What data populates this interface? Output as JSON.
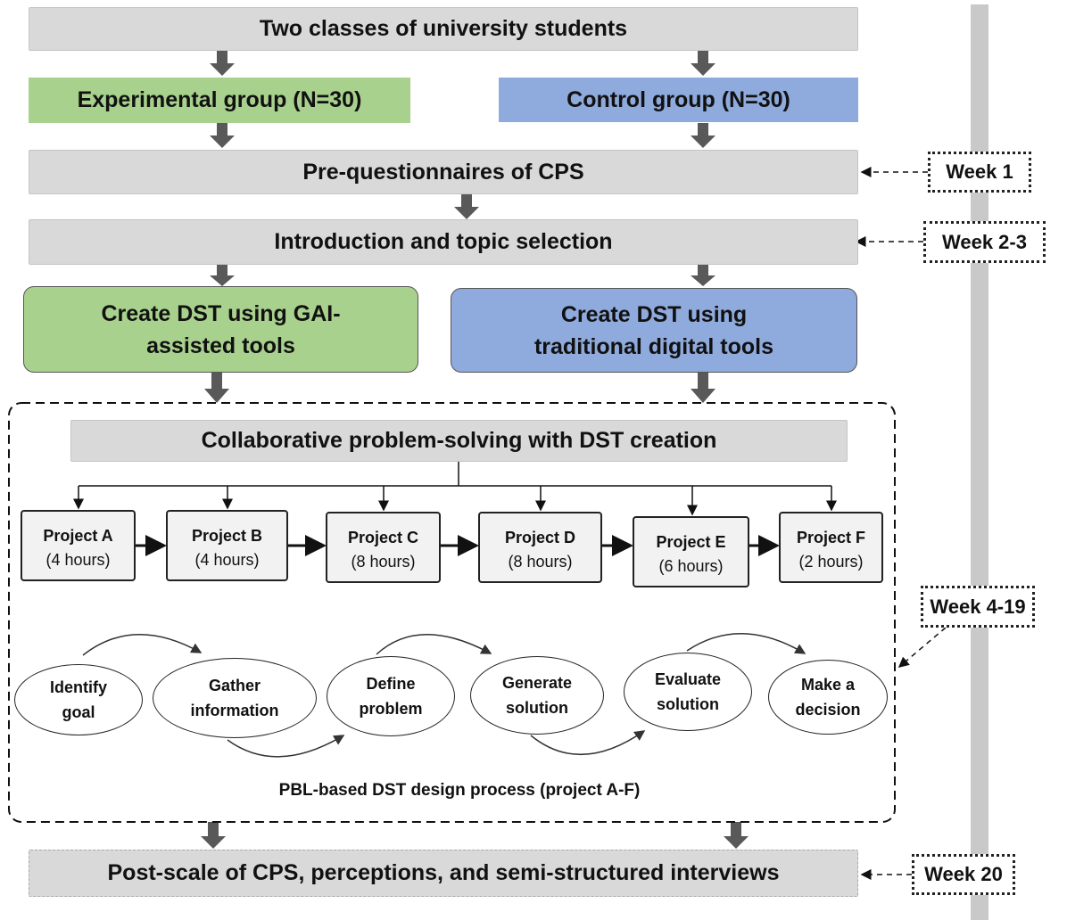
{
  "title": "Two classes of university students",
  "groups": {
    "experimental": "Experimental group (N=30)",
    "control": "Control group (N=30)"
  },
  "pre_questionnaire": "Pre-questionnaires of CPS",
  "introduction": "Introduction and topic selection",
  "conditions": {
    "experimental": "Create DST using GAI-assisted tools",
    "control": "Create DST using traditional digital tools"
  },
  "collaborative": "Collaborative problem-solving with DST creation",
  "projects": [
    {
      "name": "Project A",
      "hours": "(4 hours)"
    },
    {
      "name": "Project B",
      "hours": "(4 hours)"
    },
    {
      "name": "Project C",
      "hours": "(8 hours)"
    },
    {
      "name": "Project D",
      "hours": "(8 hours)"
    },
    {
      "name": "Project E",
      "hours": "(6 hours)"
    },
    {
      "name": "Project F",
      "hours": "(2 hours)"
    }
  ],
  "process_steps": [
    "Identify goal",
    "Gather information",
    "Define problem",
    "Generate solution",
    "Evaluate solution",
    "Make a decision"
  ],
  "process_caption": "PBL-based DST design process (project A-F)",
  "post": "Post-scale of CPS, perceptions, and semi-structured interviews",
  "weeks": [
    "Week 1",
    "Week 2-3",
    "Week 4-19",
    "Week 20"
  ],
  "colors": {
    "experimental": "#a9d18e",
    "control": "#8faadc",
    "step_box": "#d9d9d9",
    "arrow": "#595959"
  }
}
